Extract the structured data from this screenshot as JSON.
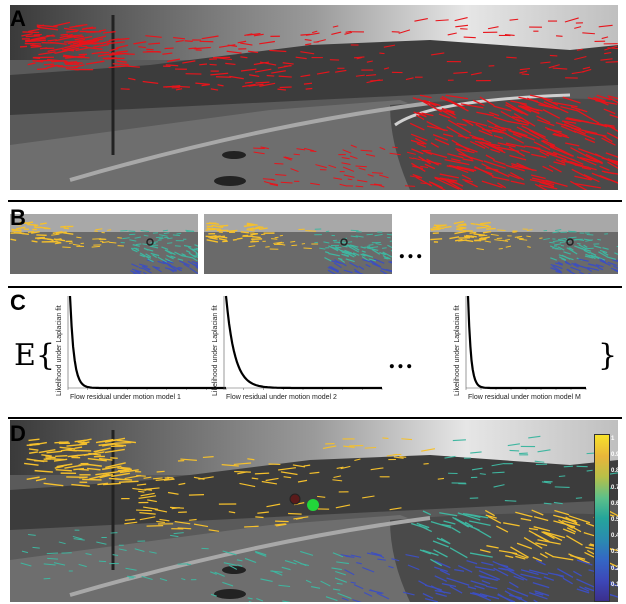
{
  "panels": {
    "a": "A",
    "b": "B",
    "c": "C",
    "d": "D"
  },
  "panel_b": {
    "ellipsis": "..."
  },
  "panel_c": {
    "expectation_symbol": "E{",
    "closing_brace": "}",
    "ellipsis": "...",
    "plots": [
      {
        "xlabel": "Flow residual under motion model 1",
        "ylabel": "Likelihood under Laplacian fit"
      },
      {
        "xlabel": "Flow residual under motion model 2",
        "ylabel": "Likelihood under Laplacian fit"
      },
      {
        "xlabel": "Flow residual under motion model M",
        "ylabel": "Likelihood under Laplacian fit"
      }
    ]
  },
  "colorbar": {
    "ticks": [
      "1",
      "0.9",
      "0.8",
      "0.7",
      "0.6",
      "0.5",
      "0.4",
      "0.3",
      "0.2",
      "0.1"
    ],
    "colors": [
      "#f7e22a",
      "#e8b53a",
      "#b8c048",
      "#5cc08a",
      "#25a59a",
      "#2a8bb0",
      "#3467c4",
      "#3d47b8",
      "#3b2f8c"
    ]
  },
  "colors": {
    "flow_red": "#e8141b",
    "flow_yellow": "#f5c02c",
    "flow_teal": "#3fb6a0",
    "flow_blue": "#3d4fc0",
    "green_dot": "#22d63a"
  }
}
